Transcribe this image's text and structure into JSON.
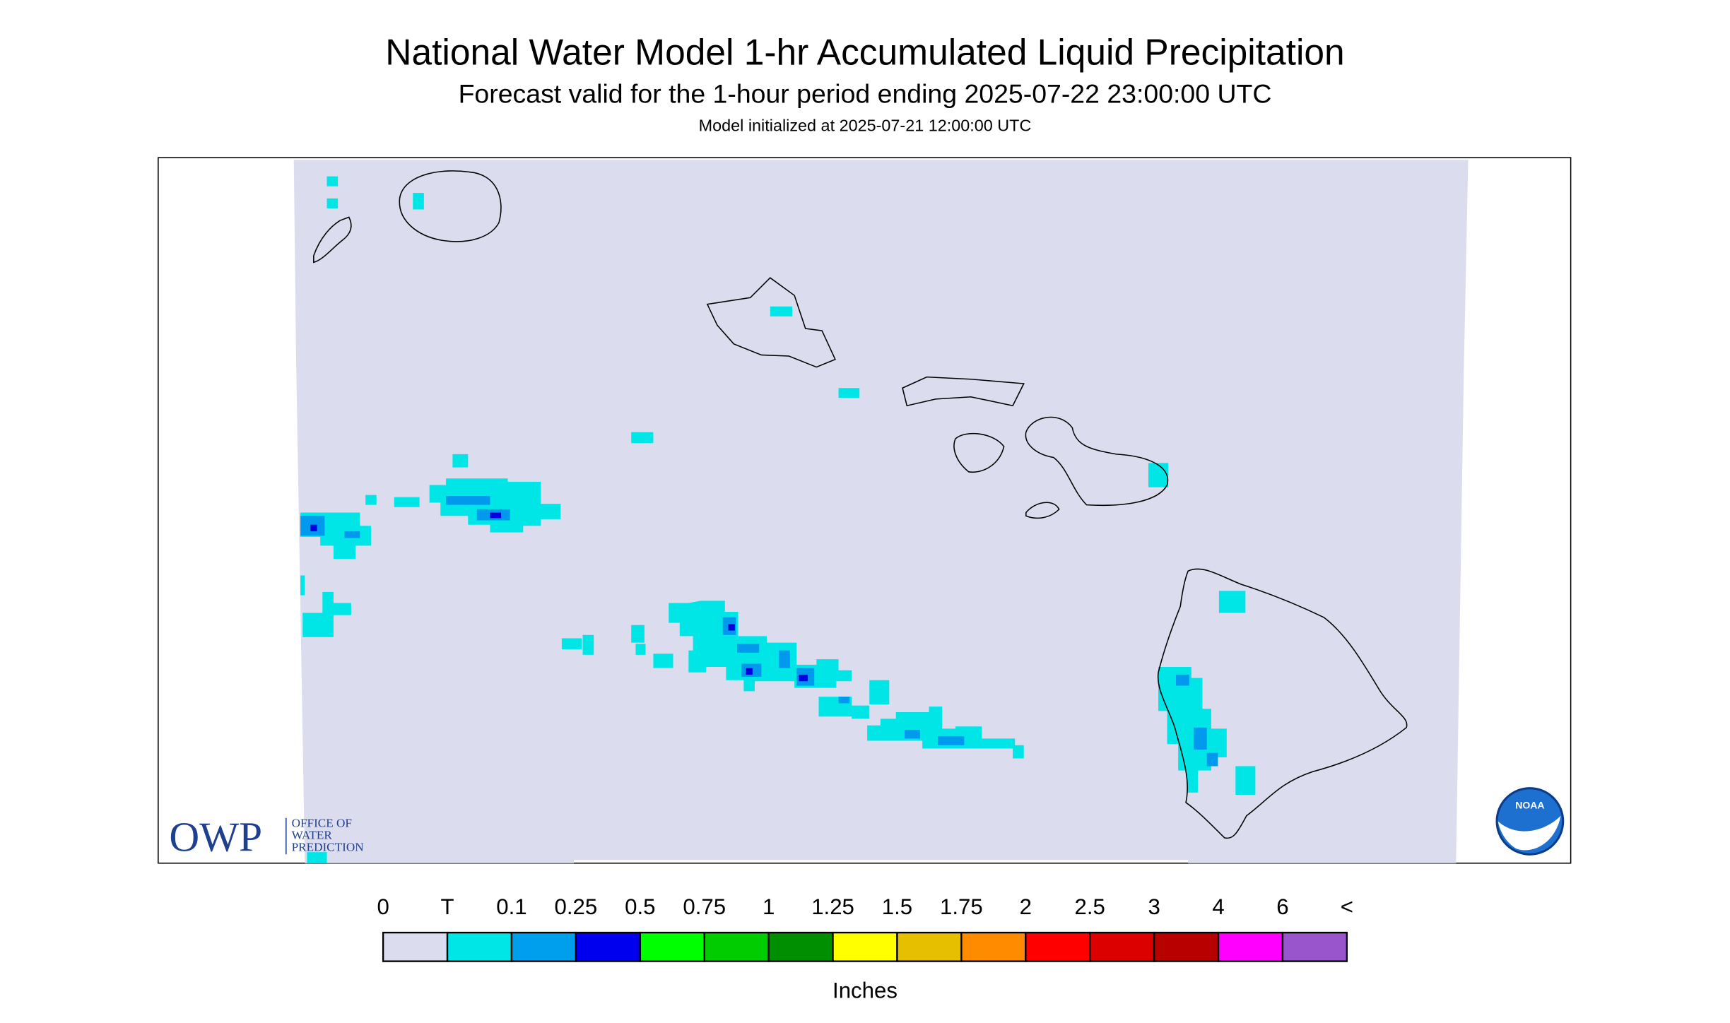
{
  "header": {
    "title": "National Water Model 1-hr Accumulated Liquid Precipitation",
    "subtitle": "Forecast valid for the 1-hour period ending 2025-07-22 23:00:00 UTC",
    "init": "Model initialized at 2025-07-21 12:00:00 UTC"
  },
  "legend": {
    "labels": [
      "0",
      "T",
      "0.1",
      "0.25",
      "0.5",
      "0.75",
      "1",
      "1.25",
      "1.5",
      "1.75",
      "2",
      "2.5",
      "3",
      "4",
      "6",
      "<"
    ],
    "colors": [
      "#dcdcef",
      "#00e6e6",
      "#009fee",
      "#0000ee",
      "#00ff00",
      "#00cc00",
      "#008f00",
      "#ffff00",
      "#e6c000",
      "#ff8c00",
      "#ff0000",
      "#dd0000",
      "#b80000",
      "#ff00ff",
      "#9955cc"
    ],
    "unit": "Inches"
  },
  "logos": {
    "owp": {
      "abbr": "OWP",
      "lines": [
        "OFFICE OF",
        "WATER",
        "PREDICTION"
      ]
    },
    "noaa": "NOAA"
  }
}
